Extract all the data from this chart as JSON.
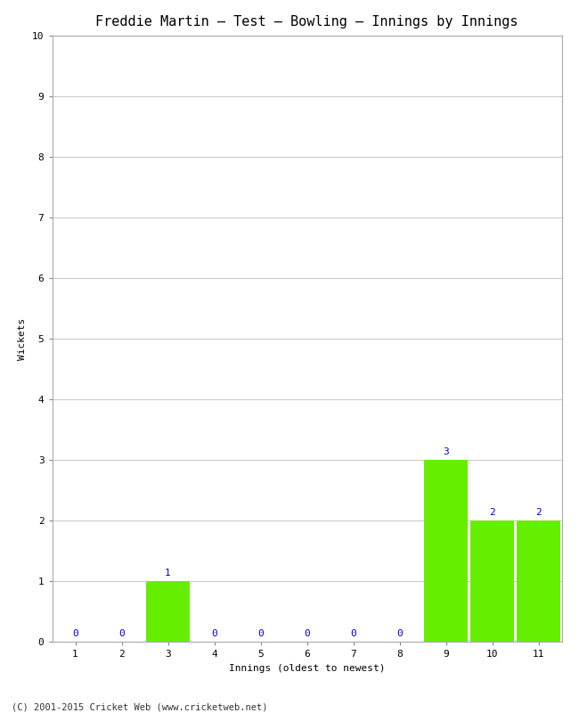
{
  "title": "Freddie Martin – Test – Bowling – Innings by Innings",
  "xlabel": "Innings (oldest to newest)",
  "ylabel": "Wickets",
  "innings": [
    1,
    2,
    3,
    4,
    5,
    6,
    7,
    8,
    9,
    10,
    11
  ],
  "wickets": [
    0,
    0,
    1,
    0,
    0,
    0,
    0,
    0,
    3,
    2,
    2
  ],
  "bar_color": "#66ee00",
  "label_color": "#0000cc",
  "ylim": [
    0,
    10
  ],
  "yticks": [
    0,
    1,
    2,
    3,
    4,
    5,
    6,
    7,
    8,
    9,
    10
  ],
  "grid_color": "#cccccc",
  "background_color": "#ffffff",
  "footer": "(C) 2001-2015 Cricket Web (www.cricketweb.net)",
  "title_fontsize": 11,
  "label_fontsize": 8,
  "tick_fontsize": 8,
  "footer_fontsize": 7.5,
  "bar_width": 0.95
}
